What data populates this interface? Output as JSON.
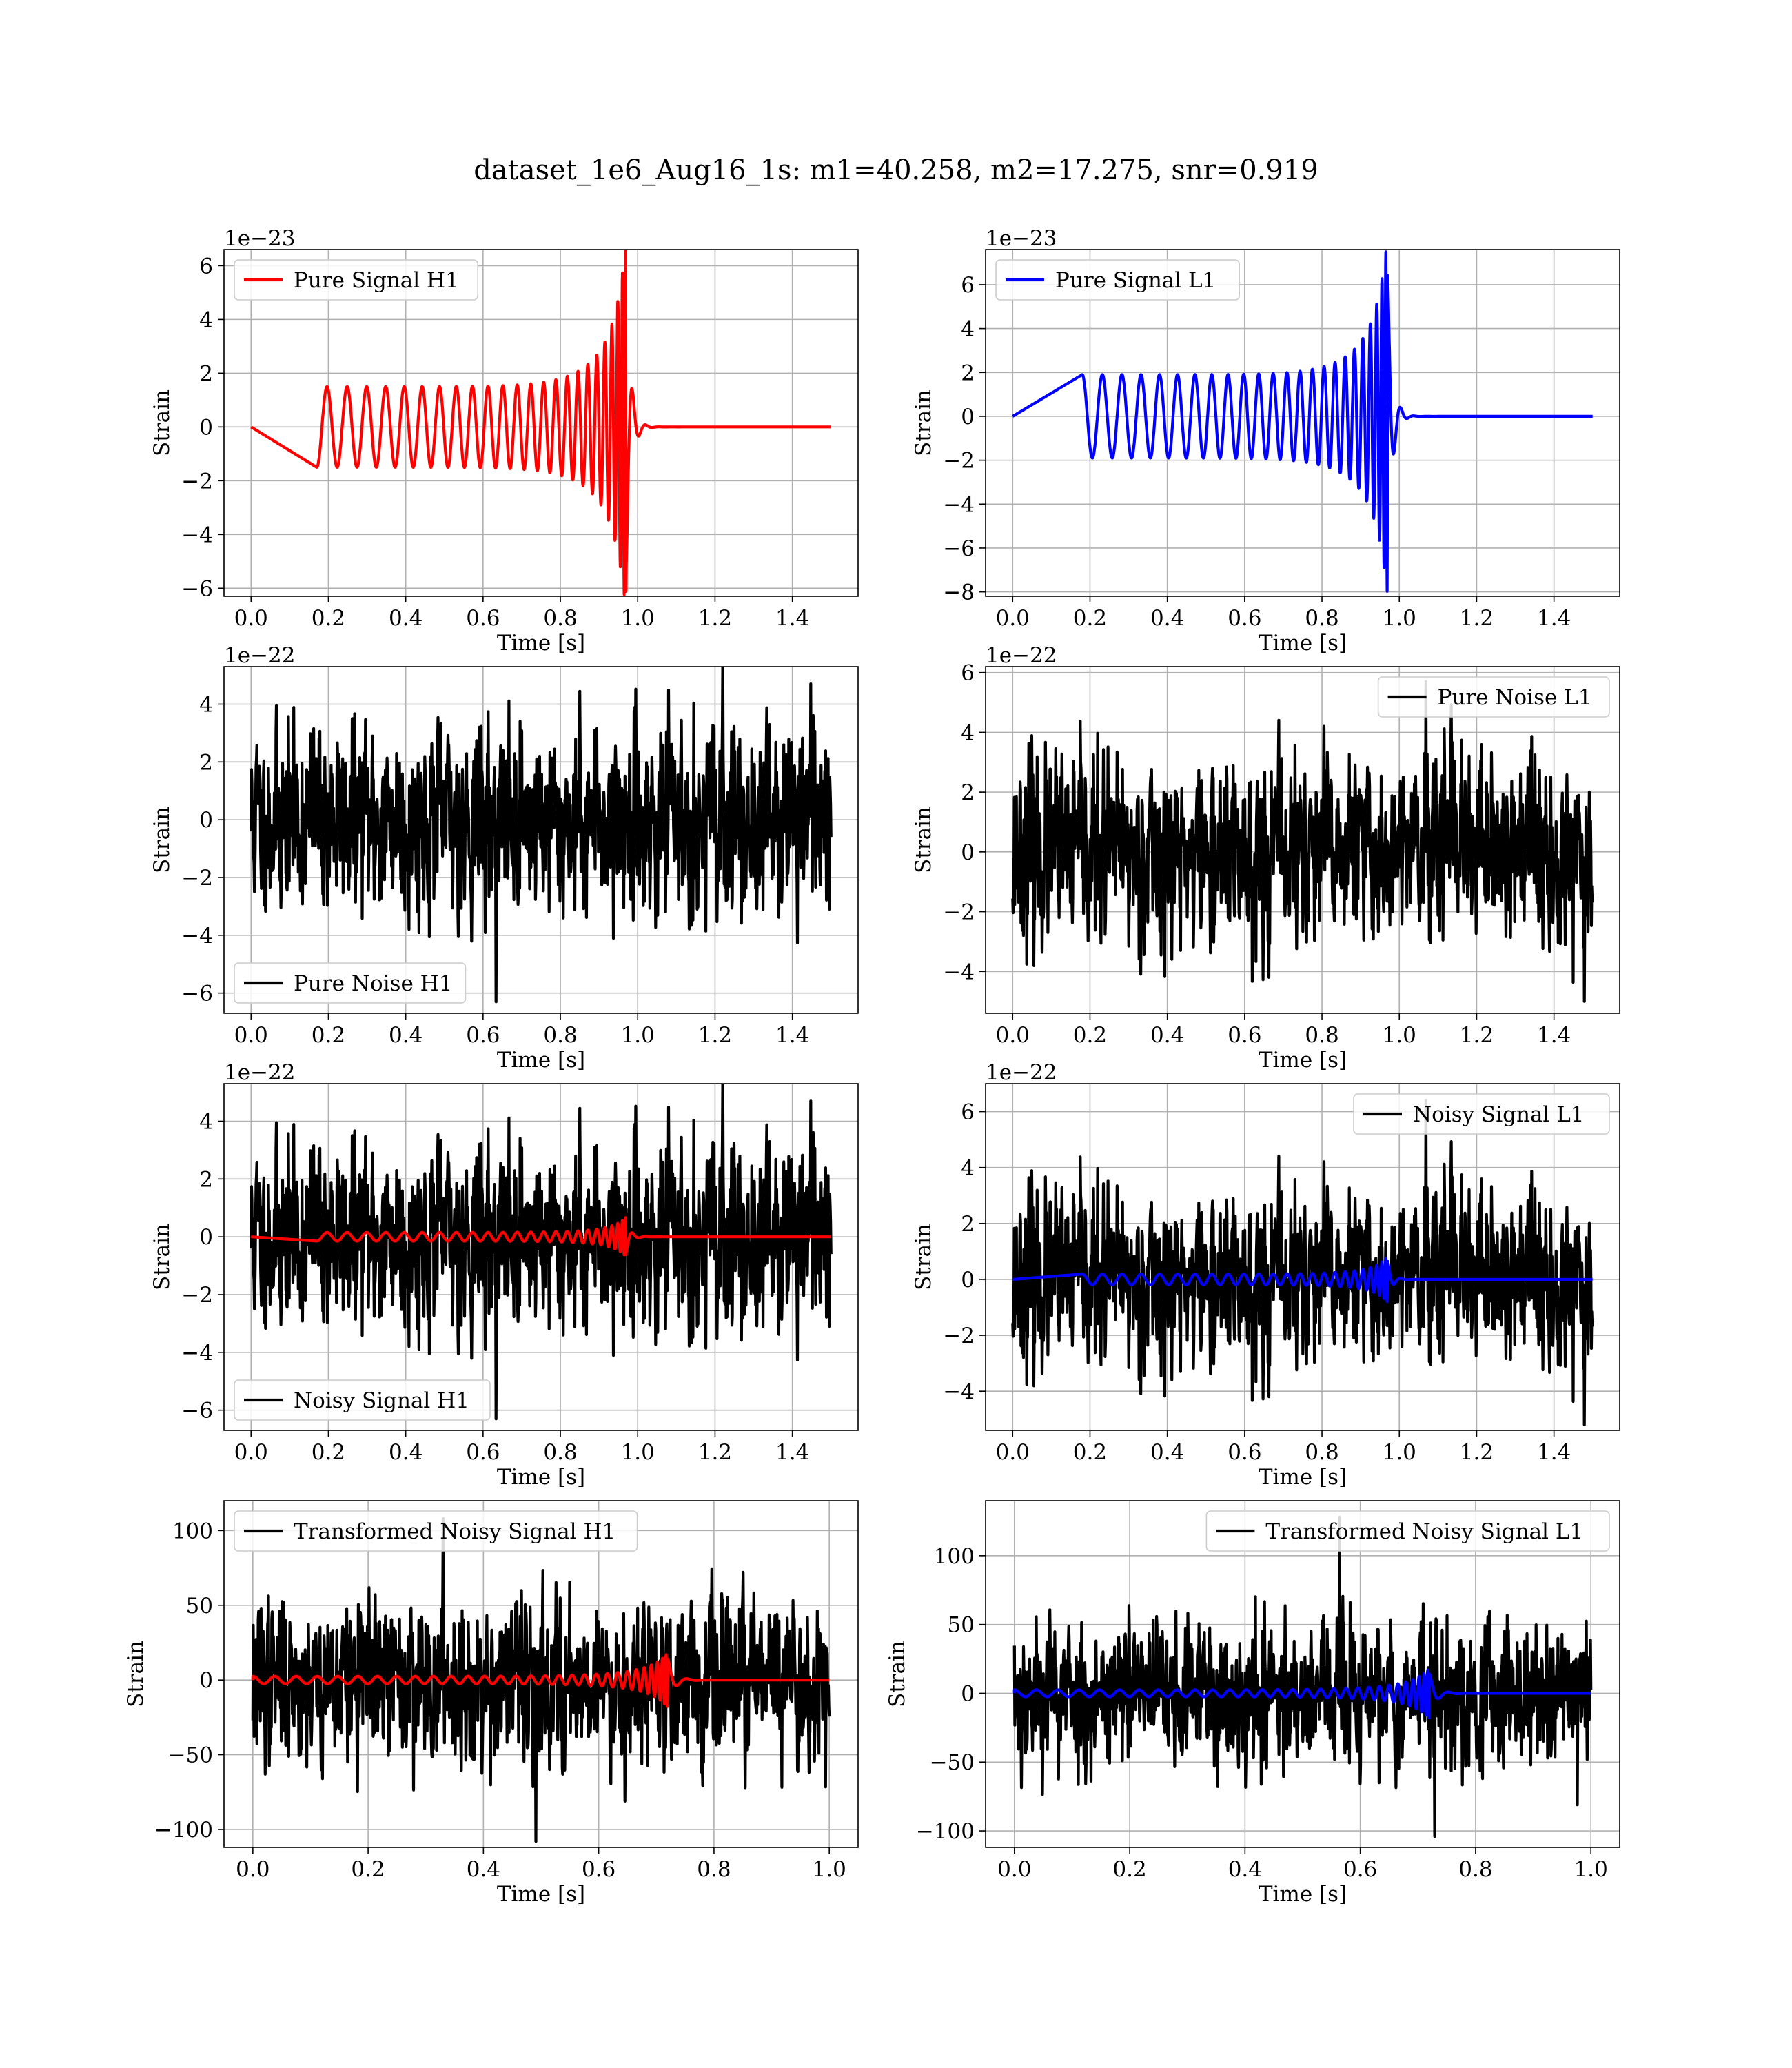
{
  "title": "dataset_1e6_Aug16_1s: m1=40.258, m2=17.275, snr=0.919",
  "chart_data": [
    {
      "type": "line",
      "xlabel": "Time [s]",
      "ylabel": "Strain",
      "offset_text": "1e−23",
      "xlim": [
        -0.07,
        1.57
      ],
      "ylim": [
        -6.3,
        6.6
      ],
      "xticks": [
        0.0,
        0.2,
        0.4,
        0.6,
        0.8,
        1.0,
        1.2,
        1.4
      ],
      "xticklabels": [
        "0.0",
        "0.2",
        "0.4",
        "0.6",
        "0.8",
        "1.0",
        "1.2",
        "1.4"
      ],
      "yticks": [
        -6,
        -4,
        -2,
        0,
        2,
        4,
        6
      ],
      "yticklabels": [
        "−6",
        "−4",
        "−2",
        "0",
        "2",
        "4",
        "6"
      ],
      "legend": "upper left",
      "grid": true,
      "series": [
        {
          "name": "Pure Signal H1",
          "color": "#ff0000",
          "kind": "chirp",
          "t_start": 0.17,
          "t_merge": 0.97,
          "t_end": 1.5,
          "a0": 1.5,
          "a_peak": 6.0,
          "phase": 3.14,
          "cycles": 24
        }
      ]
    },
    {
      "type": "line",
      "xlabel": "Time [s]",
      "ylabel": "Strain",
      "offset_text": "1e−23",
      "xlim": [
        -0.07,
        1.57
      ],
      "ylim": [
        -8.2,
        7.6
      ],
      "xticks": [
        0.0,
        0.2,
        0.4,
        0.6,
        0.8,
        1.0,
        1.2,
        1.4
      ],
      "xticklabels": [
        "0.0",
        "0.2",
        "0.4",
        "0.6",
        "0.8",
        "1.0",
        "1.2",
        "1.4"
      ],
      "yticks": [
        -8,
        -6,
        -4,
        -2,
        0,
        2,
        4,
        6
      ],
      "yticklabels": [
        "−8",
        "−6",
        "−4",
        "−2",
        "0",
        "2",
        "4",
        "6"
      ],
      "legend": "upper left",
      "grid": true,
      "series": [
        {
          "name": "Pure Signal L1",
          "color": "#0000ff",
          "kind": "chirp",
          "t_start": 0.18,
          "t_merge": 0.97,
          "t_end": 1.5,
          "a0": 1.9,
          "a_peak": 7.2,
          "phase": 0.0,
          "cycles": 24
        }
      ]
    },
    {
      "type": "line",
      "xlabel": "Time [s]",
      "ylabel": "Strain",
      "offset_text": "1e−22",
      "xlim": [
        -0.07,
        1.57
      ],
      "ylim": [
        -6.7,
        5.3
      ],
      "xticks": [
        0.0,
        0.2,
        0.4,
        0.6,
        0.8,
        1.0,
        1.2,
        1.4
      ],
      "xticklabels": [
        "0.0",
        "0.2",
        "0.4",
        "0.6",
        "0.8",
        "1.0",
        "1.2",
        "1.4"
      ],
      "yticks": [
        -6,
        -4,
        -2,
        0,
        2,
        4
      ],
      "yticklabels": [
        "−6",
        "−4",
        "−2",
        "0",
        "2",
        "4"
      ],
      "legend": "lower left",
      "grid": true,
      "series": [
        {
          "name": "Pure Noise H1",
          "color": "#000000",
          "kind": "noise",
          "t_start": 0.0,
          "t_end": 1.5,
          "rms": 1.55,
          "max": 4.7,
          "min": -6.3,
          "seed": 11
        }
      ]
    },
    {
      "type": "line",
      "xlabel": "Time [s]",
      "ylabel": "Strain",
      "offset_text": "1e−22",
      "xlim": [
        -0.07,
        1.57
      ],
      "ylim": [
        -5.4,
        6.2
      ],
      "xticks": [
        0.0,
        0.2,
        0.4,
        0.6,
        0.8,
        1.0,
        1.2,
        1.4
      ],
      "xticklabels": [
        "0.0",
        "0.2",
        "0.4",
        "0.6",
        "0.8",
        "1.0",
        "1.2",
        "1.4"
      ],
      "yticks": [
        -4,
        -2,
        0,
        2,
        4,
        6
      ],
      "yticklabels": [
        "−4",
        "−2",
        "0",
        "2",
        "4",
        "6"
      ],
      "legend": "upper right",
      "grid": true,
      "series": [
        {
          "name": "Pure Noise L1",
          "color": "#000000",
          "kind": "noise",
          "t_start": 0.0,
          "t_end": 1.5,
          "rms": 1.5,
          "max": 5.7,
          "min": -5.0,
          "seed": 23
        }
      ]
    },
    {
      "type": "line",
      "xlabel": "Time [s]",
      "ylabel": "Strain",
      "offset_text": "1e−22",
      "xlim": [
        -0.07,
        1.57
      ],
      "ylim": [
        -6.7,
        5.3
      ],
      "xticks": [
        0.0,
        0.2,
        0.4,
        0.6,
        0.8,
        1.0,
        1.2,
        1.4
      ],
      "xticklabels": [
        "0.0",
        "0.2",
        "0.4",
        "0.6",
        "0.8",
        "1.0",
        "1.2",
        "1.4"
      ],
      "yticks": [
        -6,
        -4,
        -2,
        0,
        2,
        4
      ],
      "yticklabels": [
        "−6",
        "−4",
        "−2",
        "0",
        "2",
        "4"
      ],
      "legend": "lower left",
      "grid": true,
      "series": [
        {
          "name": "Noisy Signal H1",
          "color": "#000000",
          "kind": "noise",
          "t_start": 0.0,
          "t_end": 1.5,
          "rms": 1.55,
          "max": 4.7,
          "min": -6.3,
          "seed": 11
        },
        {
          "name": "",
          "color": "#ff0000",
          "kind": "chirp",
          "t_start": 0.17,
          "t_merge": 0.97,
          "t_end": 1.5,
          "a0": 0.15,
          "a_peak": 0.6,
          "phase": 3.14,
          "cycles": 24
        }
      ]
    },
    {
      "type": "line",
      "xlabel": "Time [s]",
      "ylabel": "Strain",
      "offset_text": "1e−22",
      "xlim": [
        -0.07,
        1.57
      ],
      "ylim": [
        -5.4,
        7.0
      ],
      "xticks": [
        0.0,
        0.2,
        0.4,
        0.6,
        0.8,
        1.0,
        1.2,
        1.4
      ],
      "xticklabels": [
        "0.0",
        "0.2",
        "0.4",
        "0.6",
        "0.8",
        "1.0",
        "1.2",
        "1.4"
      ],
      "yticks": [
        -4,
        -2,
        0,
        2,
        4,
        6
      ],
      "yticklabels": [
        "−4",
        "−2",
        "0",
        "2",
        "4",
        "6"
      ],
      "legend": "upper right",
      "grid": true,
      "series": [
        {
          "name": "Noisy Signal L1",
          "color": "#000000",
          "kind": "noise",
          "t_start": 0.0,
          "t_end": 1.5,
          "rms": 1.5,
          "max": 6.4,
          "min": -5.2,
          "seed": 23
        },
        {
          "name": "",
          "color": "#0000ff",
          "kind": "chirp",
          "t_start": 0.18,
          "t_merge": 0.97,
          "t_end": 1.5,
          "a0": 0.19,
          "a_peak": 0.72,
          "phase": 0.0,
          "cycles": 24
        }
      ]
    },
    {
      "type": "line",
      "xlabel": "Time [s]",
      "ylabel": "Strain",
      "offset_text": "",
      "xlim": [
        -0.05,
        1.05
      ],
      "ylim": [
        -112,
        120
      ],
      "xticks": [
        0.0,
        0.2,
        0.4,
        0.6,
        0.8,
        1.0
      ],
      "xticklabels": [
        "0.0",
        "0.2",
        "0.4",
        "0.6",
        "0.8",
        "1.0"
      ],
      "yticks": [
        -100,
        -50,
        0,
        50,
        100
      ],
      "yticklabels": [
        "−100",
        "−50",
        "0",
        "50",
        "100"
      ],
      "legend": "upper left",
      "grid": true,
      "series": [
        {
          "name": "Transformed Noisy Signal H1",
          "color": "#000000",
          "kind": "noise",
          "t_start": 0.0,
          "t_end": 1.0,
          "rms": 26,
          "max": 108,
          "min": -108,
          "seed": 37
        },
        {
          "name": "",
          "color": "#ff0000",
          "kind": "chirp",
          "t_start": 0.0,
          "t_merge": 0.72,
          "t_end": 1.0,
          "a0": 2.5,
          "a_peak": 16,
          "phase": 0.0,
          "cycles": 30
        }
      ]
    },
    {
      "type": "line",
      "xlabel": "Time [s]",
      "ylabel": "Strain",
      "offset_text": "",
      "xlim": [
        -0.05,
        1.05
      ],
      "ylim": [
        -112,
        140
      ],
      "xticks": [
        0.0,
        0.2,
        0.4,
        0.6,
        0.8,
        1.0
      ],
      "xticklabels": [
        "0.0",
        "0.2",
        "0.4",
        "0.6",
        "0.8",
        "1.0"
      ],
      "yticks": [
        -100,
        -50,
        0,
        50,
        100
      ],
      "yticklabels": [
        "−100",
        "−50",
        "0",
        "50",
        "100"
      ],
      "legend": "upper right",
      "grid": true,
      "series": [
        {
          "name": "Transformed Noisy Signal L1",
          "color": "#000000",
          "kind": "noise",
          "t_start": 0.0,
          "t_end": 1.0,
          "rms": 26,
          "max": 128,
          "min": -104,
          "seed": 53
        },
        {
          "name": "",
          "color": "#0000ff",
          "kind": "chirp",
          "t_start": 0.0,
          "t_merge": 0.72,
          "t_end": 1.0,
          "a0": 2.5,
          "a_peak": 16,
          "phase": 0.0,
          "cycles": 30
        }
      ]
    }
  ]
}
